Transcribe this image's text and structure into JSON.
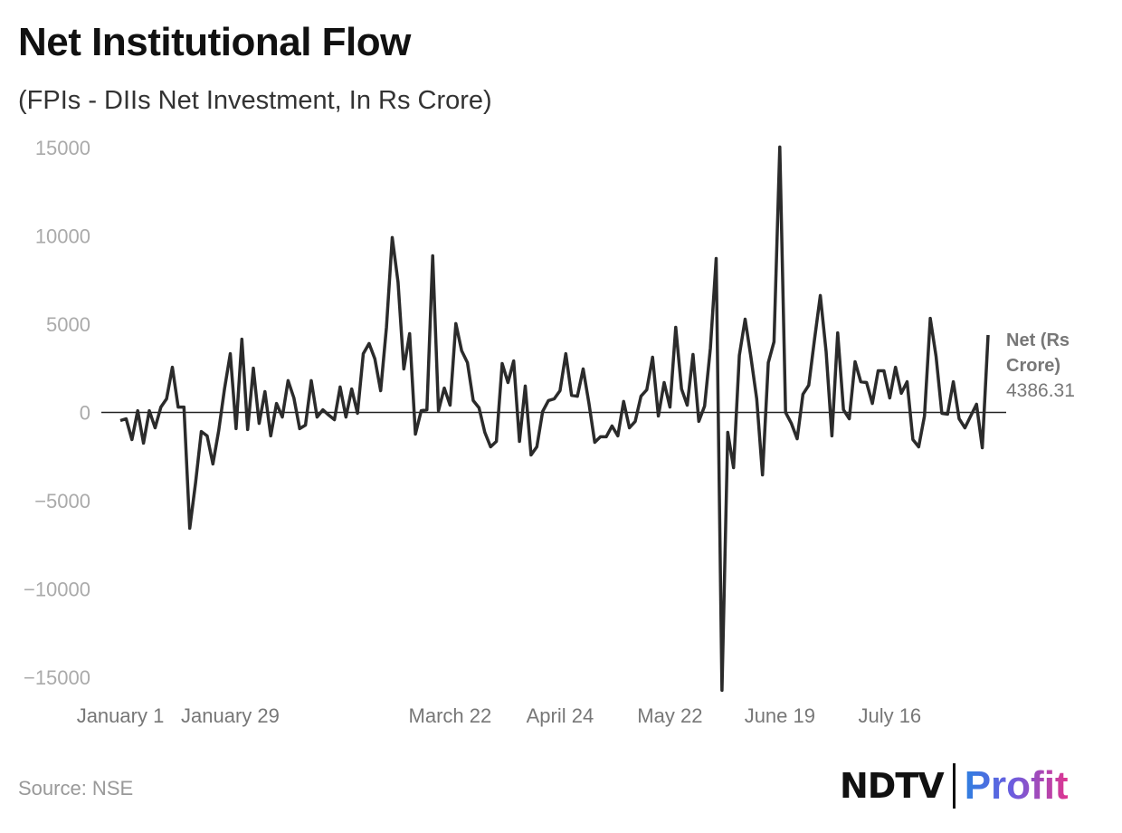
{
  "chart_data": {
    "type": "line",
    "title": "Net Institutional Flow",
    "subtitle": "(FPIs - DIIs Net Investment, In Rs Crore)",
    "ylim": [
      -15000,
      15000
    ],
    "y_ticks": [
      15000,
      10000,
      5000,
      0,
      -5000,
      -10000,
      -15000
    ],
    "y_tick_labels": [
      "15000",
      "10000",
      "5000",
      "0",
      "−5000",
      "−10000",
      "−15000"
    ],
    "x_ticks": [
      {
        "label": "January 1",
        "index": 0
      },
      {
        "label": "January 29",
        "index": 19
      },
      {
        "label": "March 22",
        "index": 57
      },
      {
        "label": "April 24",
        "index": 76
      },
      {
        "label": "May 22",
        "index": 95
      },
      {
        "label": "June 19",
        "index": 114
      },
      {
        "label": "July 16",
        "index": 133
      }
    ],
    "series": [
      {
        "name": "Net (Rs Crore)",
        "last_value_label": "4386.31",
        "color": "#2b2b2b",
        "values": [
          -460,
          -360,
          -1540,
          100,
          -1740,
          100,
          -870,
          300,
          770,
          2560,
          300,
          300,
          -6560,
          -4000,
          -1080,
          -1330,
          -2920,
          -1030,
          1330,
          3330,
          -920,
          4150,
          -970,
          2510,
          -620,
          1180,
          -1330,
          510,
          -260,
          1800,
          820,
          -920,
          -720,
          1800,
          -260,
          150,
          -150,
          -410,
          1440,
          -260,
          1330,
          -50,
          3330,
          3900,
          3030,
          1230,
          4820,
          9900,
          7380,
          2460,
          4460,
          -1230,
          100,
          150,
          8870,
          100,
          1380,
          410,
          5030,
          3490,
          2820,
          670,
          260,
          -1130,
          -1950,
          -1640,
          2770,
          1690,
          2920,
          -1640,
          1490,
          -2410,
          -1950,
          50,
          670,
          770,
          1230,
          3330,
          970,
          920,
          2460,
          510,
          -1690,
          -1380,
          -1380,
          -770,
          -1330,
          620,
          -870,
          -510,
          920,
          1280,
          3130,
          -200,
          1690,
          300,
          4820,
          1330,
          410,
          3280,
          -510,
          360,
          3640,
          8720,
          -15740,
          -1130,
          -3130,
          3230,
          5280,
          3130,
          770,
          -3540,
          2820,
          4000,
          15030,
          0,
          -620,
          -1490,
          1030,
          1540,
          4150,
          6620,
          3440,
          -1330,
          4510,
          150,
          -360,
          2870,
          1740,
          1690,
          510,
          2360,
          2360,
          820,
          2560,
          1080,
          1740,
          -1540,
          -1950,
          -200,
          5330,
          3180,
          -50,
          -100,
          1740,
          -360,
          -870,
          -200,
          460,
          -2000,
          4386.31
        ]
      }
    ],
    "legend": "end-of-line label, right",
    "grid": false
  },
  "legend_label": {
    "line1": "Net (Rs",
    "line2": "Crore)"
  },
  "footer": {
    "source": "Source: NSE",
    "logo_left": "NDTV",
    "logo_right": "Profit"
  }
}
